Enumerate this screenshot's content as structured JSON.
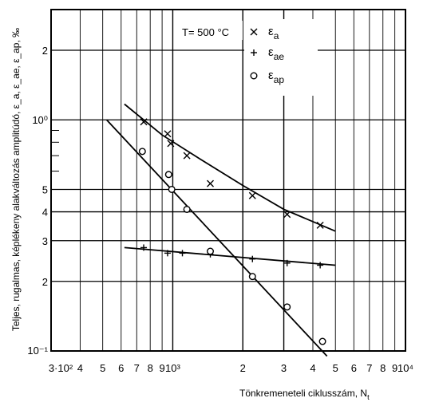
{
  "chart_data": {
    "type": "scatter",
    "annotation": "T= 500 °C",
    "xlabel": "Tönkremeneteli ciklusszám, N",
    "xlabel_sub": "t",
    "ylabel": "Teljes, rugalmas, képlékeny alakváltozás amplitúdó, ε_a, ε_ae, ε_ap, ‰",
    "x_scale": "log",
    "y_scale": "log",
    "xlim": [
      300,
      10000
    ],
    "ylim": [
      0.1,
      3
    ],
    "grid": true,
    "legend_position": "top-right",
    "x_tick_labels": [
      "3·10²",
      "4",
      "5",
      "6",
      "7",
      "8",
      "9",
      "10³",
      "2",
      "3",
      "4",
      "5",
      "6",
      "7",
      "8",
      "9",
      "10⁴"
    ],
    "y_tick_labels": [
      "10⁻¹",
      "2",
      "3",
      "4",
      "5",
      "10⁰",
      "2"
    ],
    "series": [
      {
        "name": "ε_a",
        "marker": "x",
        "points": [
          [
            750,
            0.98
          ],
          [
            950,
            0.87
          ],
          [
            980,
            0.79
          ],
          [
            1150,
            0.7
          ],
          [
            1450,
            0.53
          ],
          [
            2200,
            0.47
          ],
          [
            3100,
            0.39
          ],
          [
            4300,
            0.35
          ]
        ],
        "fit": [
          [
            620,
            1.17
          ],
          [
            900,
            0.86
          ],
          [
            1300,
            0.68
          ],
          [
            2000,
            0.52
          ],
          [
            3000,
            0.41
          ],
          [
            5000,
            0.33
          ]
        ]
      },
      {
        "name": "ε_ae",
        "marker": "+",
        "points": [
          [
            750,
            0.28
          ],
          [
            950,
            0.265
          ],
          [
            1100,
            0.265
          ],
          [
            1450,
            0.262
          ],
          [
            2200,
            0.25
          ],
          [
            3100,
            0.24
          ],
          [
            4300,
            0.235
          ]
        ],
        "fit": [
          [
            620,
            0.28
          ],
          [
            5000,
            0.235
          ]
        ]
      },
      {
        "name": "ε_ap",
        "marker": "o",
        "points": [
          [
            740,
            0.73
          ],
          [
            960,
            0.58
          ],
          [
            990,
            0.5
          ],
          [
            1150,
            0.41
          ],
          [
            1450,
            0.27
          ],
          [
            2200,
            0.21
          ],
          [
            3100,
            0.155
          ],
          [
            4400,
            0.11
          ]
        ],
        "fit": [
          [
            520,
            1.0
          ],
          [
            4600,
            0.095
          ]
        ]
      }
    ]
  }
}
